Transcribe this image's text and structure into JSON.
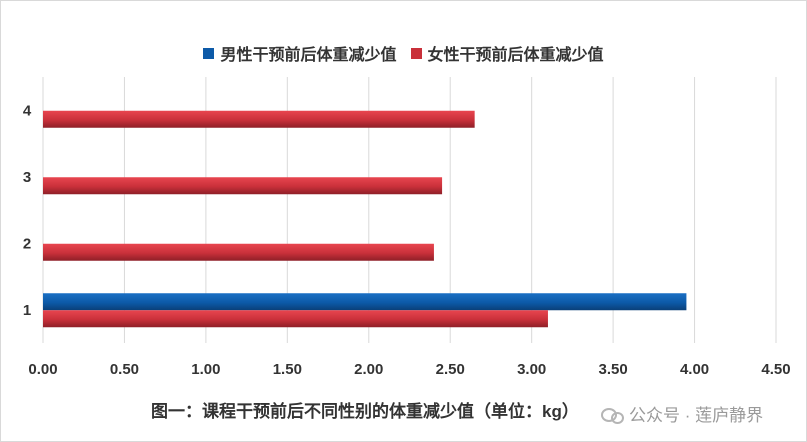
{
  "chart_data": {
    "type": "bar",
    "orientation": "horizontal",
    "title": "",
    "xlabel": "",
    "ylabel": "",
    "categories": [
      "1",
      "2",
      "3",
      "4"
    ],
    "series": [
      {
        "name": "男性干预前后体重减少值",
        "color": "#0d5aa8",
        "values": [
          3.95,
          null,
          null,
          null
        ]
      },
      {
        "name": "女性干预前后体重减少值",
        "color": "#c9303a",
        "values": [
          3.1,
          2.4,
          2.45,
          2.65
        ]
      }
    ],
    "xlim": [
      0,
      4.5
    ],
    "xticks": [
      "0.00",
      "0.50",
      "1.00",
      "1.50",
      "2.00",
      "2.50",
      "3.00",
      "3.50",
      "4.00",
      "4.50"
    ],
    "grid": true,
    "legend": "top-center"
  },
  "caption": "图一：课程干预前后不同性别的体重减少值（单位：kg）",
  "watermark": {
    "icon": "wechat-icon",
    "text": "公众号 · 莲庐静界"
  }
}
